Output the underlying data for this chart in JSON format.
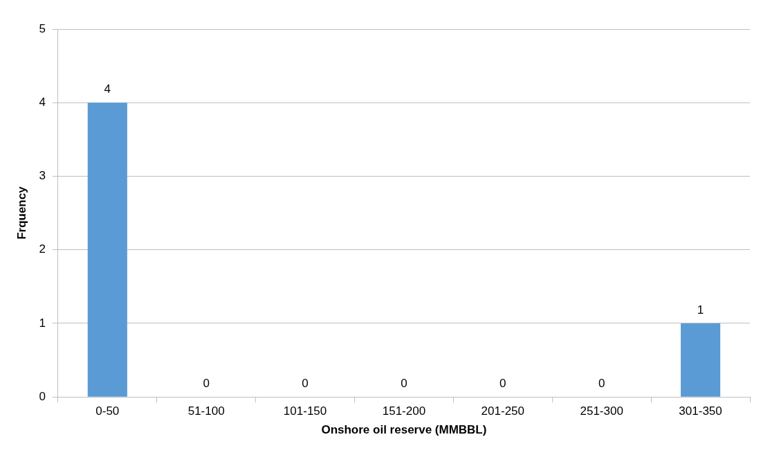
{
  "chart_data": {
    "type": "bar",
    "xlabel": "Onshore oil reserve (MMBBL)",
    "ylabel": "Frquency",
    "categories": [
      "0-50",
      "51-100",
      "101-150",
      "151-200",
      "201-250",
      "251-300",
      "301-350"
    ],
    "values": [
      4,
      0,
      0,
      0,
      0,
      0,
      1
    ],
    "color": "#5b9bd5",
    "ylim": [
      0,
      5
    ],
    "yticks": [
      0,
      1,
      2,
      3,
      4,
      5
    ],
    "grid": "y",
    "data_labels": true,
    "legend": false
  }
}
